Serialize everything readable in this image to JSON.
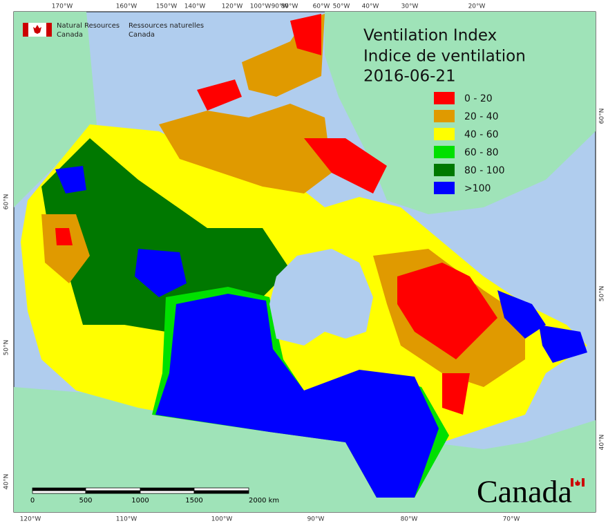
{
  "header": {
    "org_en": [
      "Natural Resources",
      "Canada"
    ],
    "org_fr": [
      "Ressources naturelles",
      "Canada"
    ]
  },
  "title": [
    "Ventilation Index",
    "Indice de ventilation"
  ],
  "date": "2016-06-21",
  "legend": [
    {
      "label": "0 - 20",
      "color": "#ff0000"
    },
    {
      "label": "20 - 40",
      "color": "#e09a00"
    },
    {
      "label": "40 - 60",
      "color": "#ffff00"
    },
    {
      "label": "60 - 80",
      "color": "#00e000"
    },
    {
      "label": "80 - 100",
      "color": "#007800"
    },
    {
      "label": ">100",
      "color": "#0000ff"
    }
  ],
  "graticule": {
    "top": [
      "170°W",
      "160°W",
      "150°W",
      "140°W",
      "120°W",
      "100°W",
      "90°W",
      "80°W",
      "60°W",
      "50°W",
      "40°W",
      "30°W",
      "20°W"
    ],
    "bottom": [
      "120°W",
      "110°W",
      "100°W",
      "90°W",
      "80°W",
      "70°W"
    ],
    "left": [
      "60°N",
      "50°N",
      "40°N"
    ],
    "right": [
      "60°N",
      "50°N",
      "40°N"
    ]
  },
  "scale_bar": [
    "0",
    "500",
    "1000",
    "1500",
    "2000  km"
  ],
  "wordmark": "Canada"
}
